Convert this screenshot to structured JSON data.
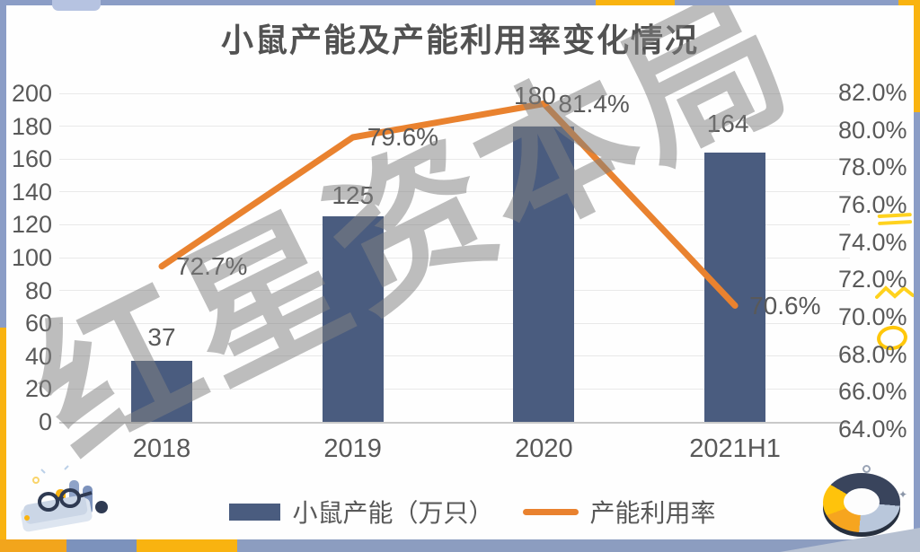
{
  "watermark": {
    "text": "红星资本局"
  },
  "legend": {
    "bar_label": "小鼠产能（万只）",
    "line_label": "产能利用率"
  },
  "chart_data": {
    "type": "bar",
    "title": "小鼠产能及产能利用率变化情况",
    "categories": [
      "2018",
      "2019",
      "2020",
      "2021H1"
    ],
    "series": [
      {
        "name": "小鼠产能（万只）",
        "type": "bar",
        "axis": "left",
        "values": [
          37,
          125,
          180,
          164
        ],
        "labels": [
          "37",
          "125",
          "180",
          "164"
        ]
      },
      {
        "name": "产能利用率",
        "type": "line",
        "axis": "right",
        "values": [
          72.7,
          79.6,
          81.4,
          70.6
        ],
        "labels": [
          "72.7%",
          "79.6%",
          "81.4%",
          "70.6%"
        ]
      }
    ],
    "left_axis": {
      "min": 0,
      "max": 200,
      "step": 20,
      "ticks": [
        "200",
        "180",
        "160",
        "140",
        "120",
        "100",
        "80",
        "60",
        "40",
        "20",
        "0"
      ]
    },
    "right_axis": {
      "min": 64,
      "max": 82,
      "step": 2,
      "ticks": [
        "82.0%",
        "80.0%",
        "78.0%",
        "76.0%",
        "74.0%",
        "72.0%",
        "70.0%",
        "68.0%",
        "66.0%",
        "64.0%"
      ]
    },
    "grid": true,
    "legend_position": "bottom"
  },
  "colors": {
    "bar": "#4A5C7F",
    "line": "#E9822F",
    "axis_text": "#595959",
    "grid": "#E9E9E9",
    "axis_line": "#C9C9C9",
    "frame_blue": "#8B9DC6",
    "frame_yellow": "#F9B310",
    "frame_orange": "#F2A51C",
    "watermark_gray": "#808080"
  }
}
